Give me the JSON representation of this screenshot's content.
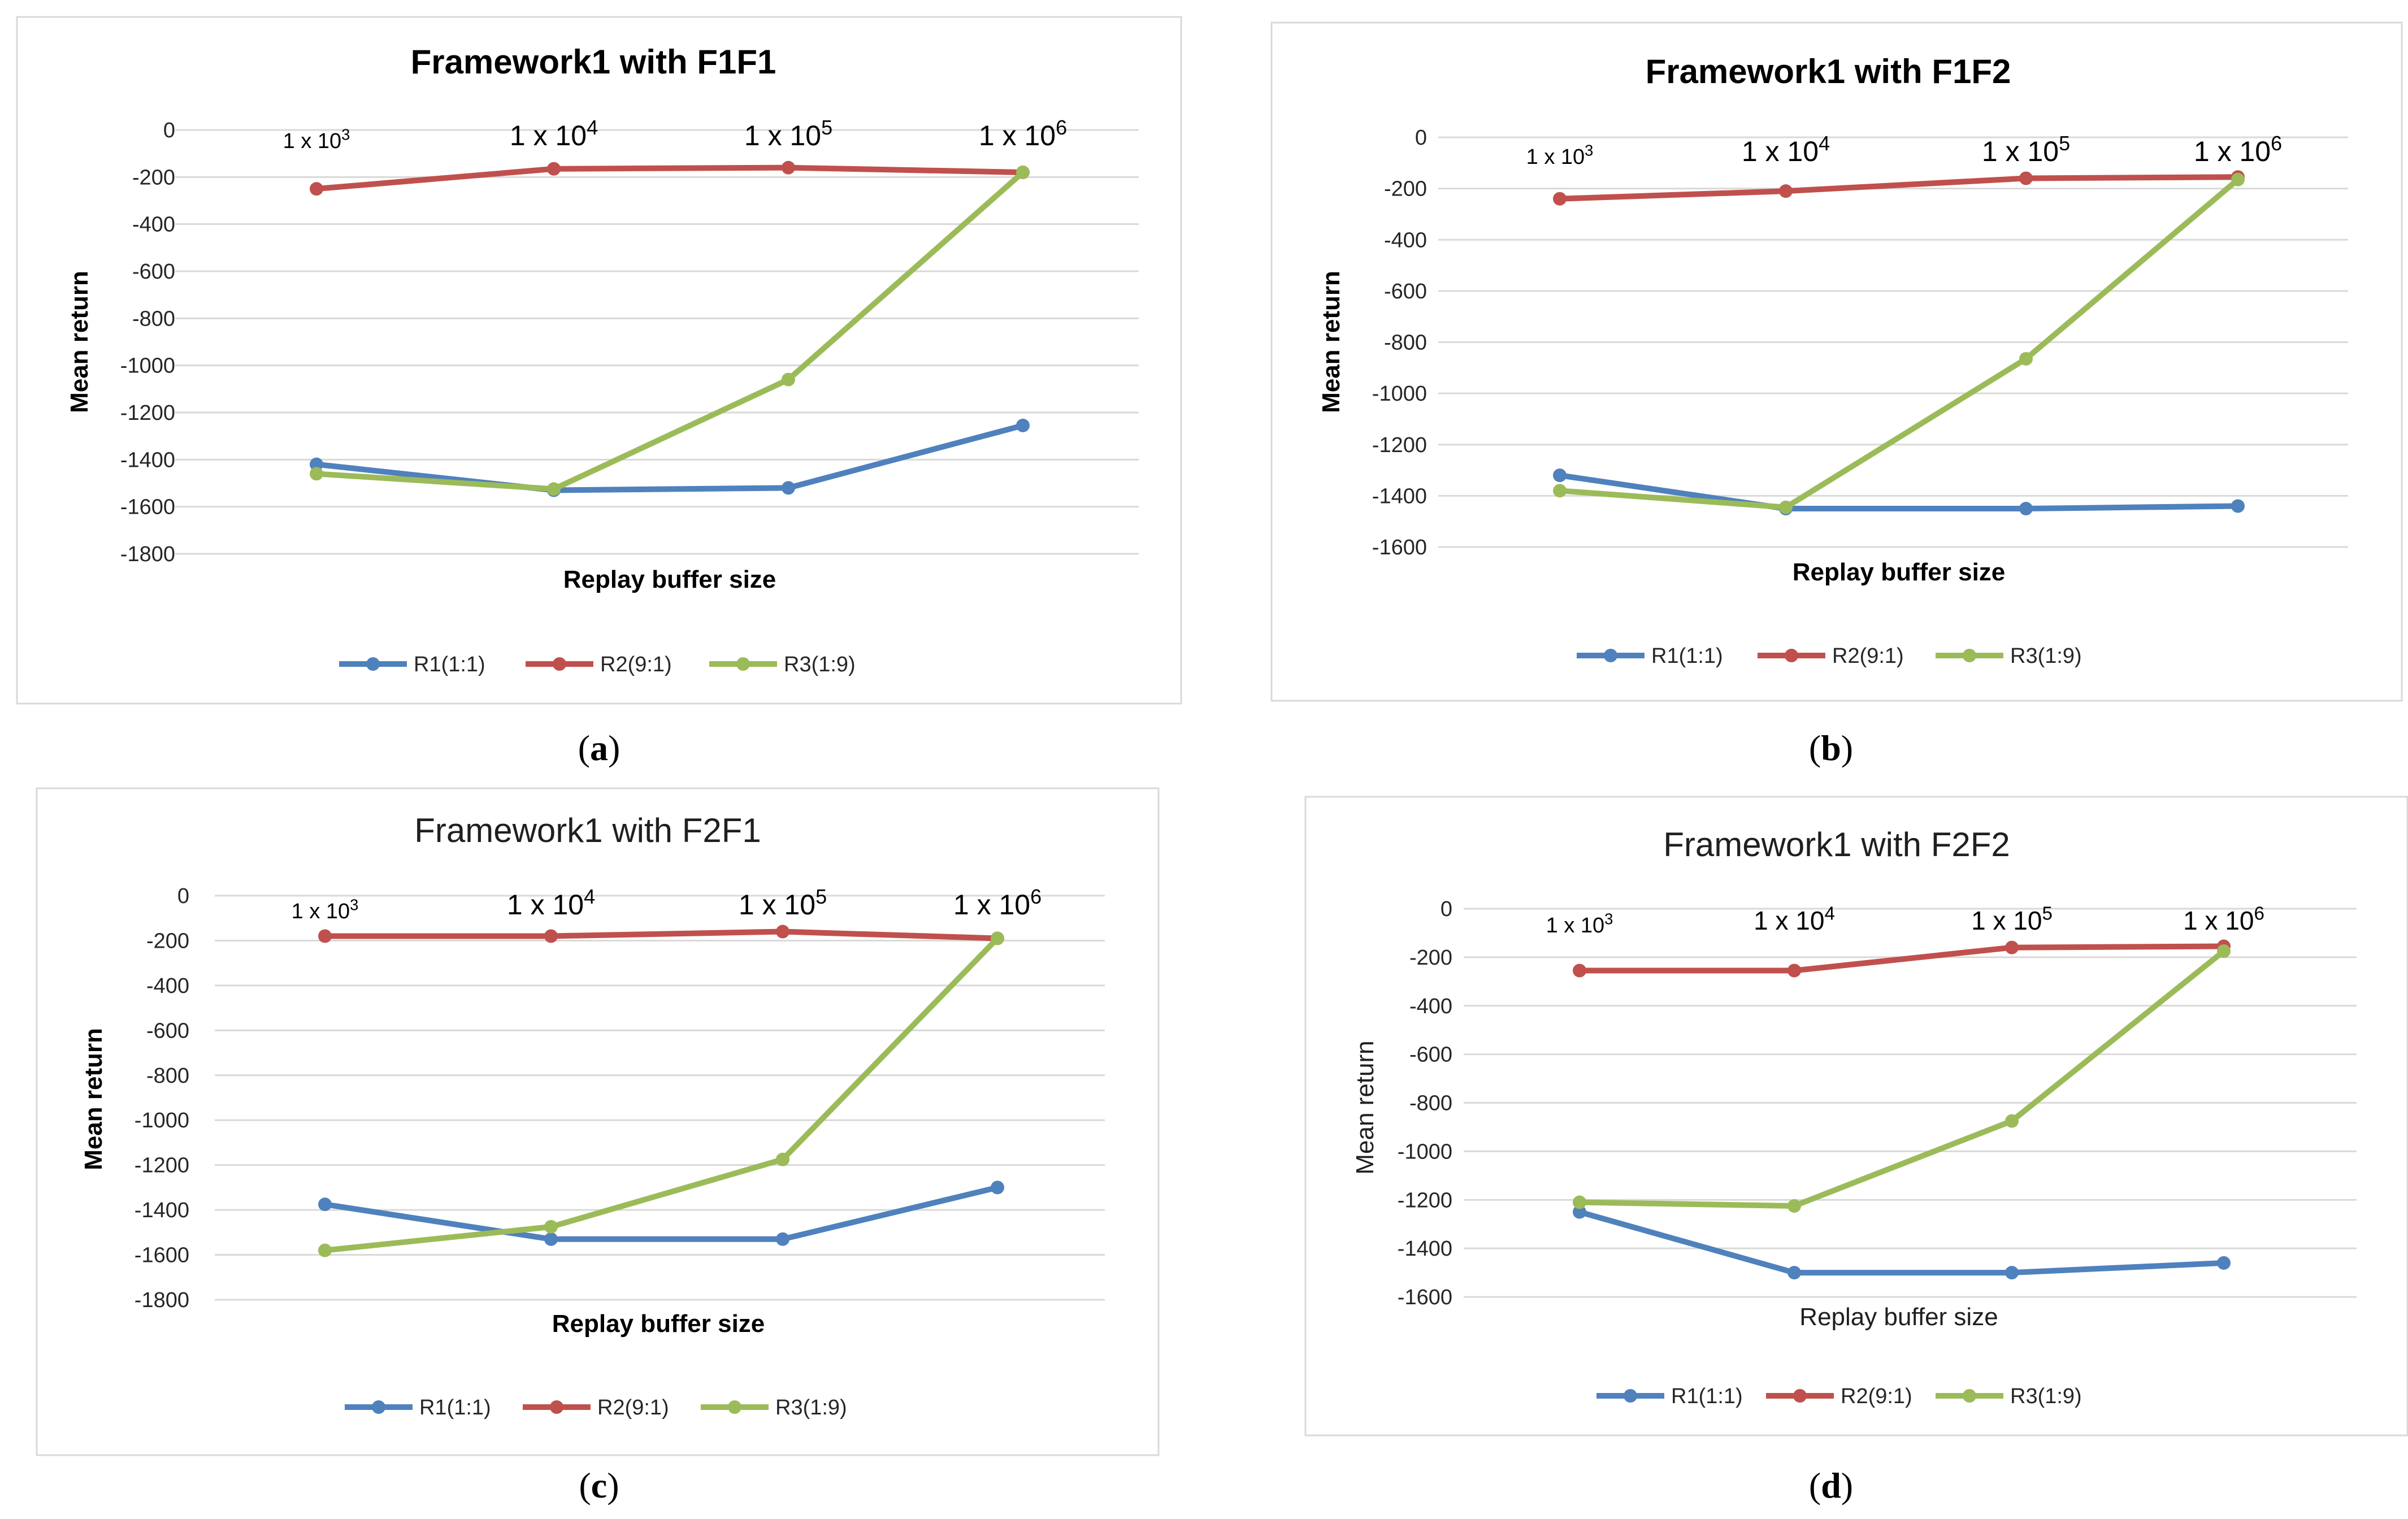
{
  "colors": {
    "R1": "#4f81bd",
    "R2": "#c0504d",
    "R3": "#9bbb59"
  },
  "chart_data": [
    {
      "panel_label": "a",
      "type": "line",
      "title": "Framework1 with F1F1",
      "xlabel": "Replay buffer size",
      "ylabel": "Mean return",
      "categories": [
        {
          "base": "1 x 10",
          "exp": "3"
        },
        {
          "base": "1 x 10",
          "exp": "4"
        },
        {
          "base": "1 x 10",
          "exp": "5"
        },
        {
          "base": "1 x 10",
          "exp": "6"
        }
      ],
      "yticks": [
        "0",
        "-200",
        "-400",
        "-600",
        "-800",
        "-1000",
        "-1200",
        "-1400",
        "-1600",
        "-1800"
      ],
      "ylim": [
        -1800,
        0
      ],
      "series": [
        {
          "name": "R1(1:1)",
          "values": [
            -1420,
            -1530,
            -1520,
            -1255
          ]
        },
        {
          "name": "R2(9:1)",
          "values": [
            -250,
            -165,
            -160,
            -180
          ]
        },
        {
          "name": "R3(1:9)",
          "values": [
            -1460,
            -1525,
            -1060,
            -180
          ]
        }
      ]
    },
    {
      "panel_label": "b",
      "type": "line",
      "title": "Framework1 with F1F2",
      "xlabel": "Replay buffer size",
      "ylabel": "Mean return",
      "categories": [
        {
          "base": "1 x 10",
          "exp": "3"
        },
        {
          "base": "1 x 10",
          "exp": "4"
        },
        {
          "base": "1 x 10",
          "exp": "5"
        },
        {
          "base": "1 x 10",
          "exp": "6"
        }
      ],
      "yticks": [
        "0",
        "-200",
        "-400",
        "-600",
        "-800",
        "-1000",
        "-1200",
        "-1400",
        "-1600"
      ],
      "ylim": [
        -1600,
        0
      ],
      "series": [
        {
          "name": "R1(1:1)",
          "values": [
            -1320,
            -1450,
            -1450,
            -1440
          ]
        },
        {
          "name": "R2(9:1)",
          "values": [
            -240,
            -210,
            -160,
            -155
          ]
        },
        {
          "name": "R3(1:9)",
          "values": [
            -1380,
            -1445,
            -865,
            -165
          ]
        }
      ]
    },
    {
      "panel_label": "c",
      "type": "line",
      "title": "Framework1 with F2F1",
      "xlabel": "Replay buffer size",
      "ylabel": "Mean return",
      "categories": [
        {
          "base": "1 x 10",
          "exp": "3"
        },
        {
          "base": "1 x 10",
          "exp": "4"
        },
        {
          "base": "1 x 10",
          "exp": "5"
        },
        {
          "base": "1 x 10",
          "exp": "6"
        }
      ],
      "yticks": [
        "0",
        "-200",
        "-400",
        "-600",
        "-800",
        "-1000",
        "-1200",
        "-1400",
        "-1600",
        "-1800"
      ],
      "ylim": [
        -1800,
        0
      ],
      "series": [
        {
          "name": "R1(1:1)",
          "values": [
            -1375,
            -1530,
            -1530,
            -1300
          ]
        },
        {
          "name": "R2(9:1)",
          "values": [
            -180,
            -180,
            -160,
            -190
          ]
        },
        {
          "name": "R3(1:9)",
          "values": [
            -1580,
            -1475,
            -1175,
            -190
          ]
        }
      ]
    },
    {
      "panel_label": "d",
      "type": "line",
      "title": "Framework1 with F2F2",
      "xlabel": "Replay buffer size",
      "ylabel": "Mean return",
      "categories": [
        {
          "base": "1 x 10",
          "exp": "3"
        },
        {
          "base": "1 x 10",
          "exp": "4"
        },
        {
          "base": "1 x 10",
          "exp": "5"
        },
        {
          "base": "1 x 10",
          "exp": "6"
        }
      ],
      "yticks": [
        "0",
        "-200",
        "-400",
        "-600",
        "-800",
        "-1000",
        "-1200",
        "-1400",
        "-1600"
      ],
      "ylim": [
        -1600,
        0
      ],
      "series": [
        {
          "name": "R1(1:1)",
          "values": [
            -1250,
            -1500,
            -1500,
            -1460
          ]
        },
        {
          "name": "R2(9:1)",
          "values": [
            -255,
            -255,
            -160,
            -155
          ]
        },
        {
          "name": "R3(1:9)",
          "values": [
            -1210,
            -1225,
            -875,
            -175
          ]
        }
      ]
    }
  ]
}
